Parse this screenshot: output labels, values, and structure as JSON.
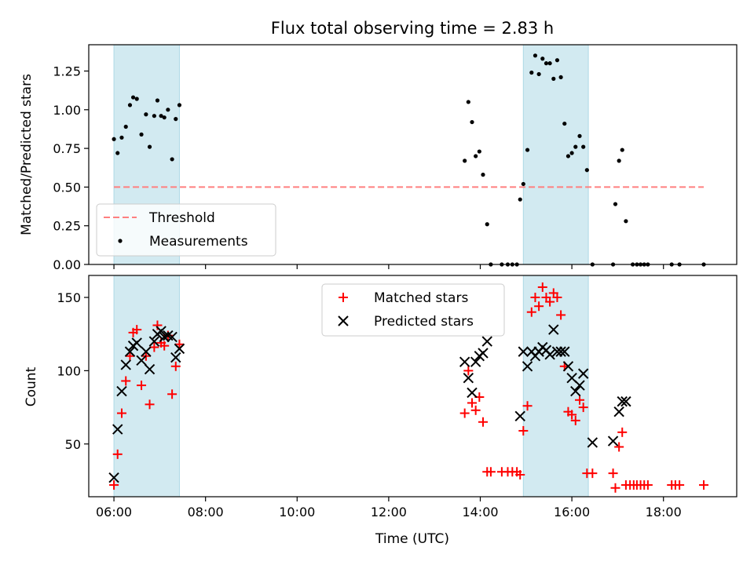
{
  "chart_data": [
    {
      "type": "scatter",
      "title": "Flux total observing time = 2.83 h",
      "xlabel": "",
      "ylabel": "Matched/Predicted stars",
      "xlim": [
        5.45,
        19.6
      ],
      "ylim": [
        0,
        1.42
      ],
      "xticks": [
        6,
        8,
        10,
        12,
        14,
        16,
        18
      ],
      "yticks": [
        0,
        0.25,
        0.5,
        0.75,
        1.0,
        1.25
      ],
      "ytick_labels": [
        "0.00",
        "0.25",
        "0.50",
        "0.75",
        "1.00",
        "1.25"
      ],
      "shaded_spans": [
        [
          6.0,
          7.43
        ],
        [
          14.94,
          16.36
        ]
      ],
      "shade_color": "#add8e6",
      "legend": {
        "placement": "lower-left",
        "threshold_label": "Threshold",
        "measurements_label": "Measurements"
      },
      "threshold": {
        "value": 0.5,
        "x_range": [
          6.0,
          18.88
        ],
        "color": "#ff7f7f"
      },
      "measurements": {
        "color": "#000000",
        "points": [
          [
            6.0,
            0.81
          ],
          [
            6.08,
            0.72
          ],
          [
            6.17,
            0.82
          ],
          [
            6.26,
            0.89
          ],
          [
            6.35,
            1.03
          ],
          [
            6.42,
            1.08
          ],
          [
            6.5,
            1.07
          ],
          [
            6.6,
            0.84
          ],
          [
            6.7,
            0.97
          ],
          [
            6.78,
            0.76
          ],
          [
            6.88,
            0.96
          ],
          [
            6.95,
            1.06
          ],
          [
            7.03,
            0.96
          ],
          [
            7.1,
            0.95
          ],
          [
            7.18,
            1.0
          ],
          [
            7.27,
            0.68
          ],
          [
            7.35,
            0.94
          ],
          [
            7.43,
            1.03
          ],
          [
            13.66,
            0.67
          ],
          [
            13.74,
            1.05
          ],
          [
            13.82,
            0.92
          ],
          [
            13.9,
            0.7
          ],
          [
            13.98,
            0.73
          ],
          [
            14.06,
            0.58
          ],
          [
            14.15,
            0.26
          ],
          [
            14.23,
            0.0
          ],
          [
            14.47,
            0.0
          ],
          [
            14.6,
            0.0
          ],
          [
            14.7,
            0.0
          ],
          [
            14.8,
            0.0
          ],
          [
            14.87,
            0.42
          ],
          [
            14.94,
            0.52
          ],
          [
            15.03,
            0.74
          ],
          [
            15.12,
            1.24
          ],
          [
            15.2,
            1.35
          ],
          [
            15.28,
            1.23
          ],
          [
            15.36,
            1.33
          ],
          [
            15.44,
            1.3
          ],
          [
            15.52,
            1.3
          ],
          [
            15.6,
            1.2
          ],
          [
            15.68,
            1.32
          ],
          [
            15.76,
            1.21
          ],
          [
            15.84,
            0.91
          ],
          [
            15.92,
            0.7
          ],
          [
            16.0,
            0.72
          ],
          [
            16.08,
            0.76
          ],
          [
            16.17,
            0.83
          ],
          [
            16.25,
            0.76
          ],
          [
            16.33,
            0.61
          ],
          [
            16.45,
            0.0
          ],
          [
            16.9,
            0.0
          ],
          [
            16.95,
            0.39
          ],
          [
            17.03,
            0.67
          ],
          [
            17.1,
            0.74
          ],
          [
            17.18,
            0.28
          ],
          [
            17.33,
            0.0
          ],
          [
            17.42,
            0.0
          ],
          [
            17.5,
            0.0
          ],
          [
            17.58,
            0.0
          ],
          [
            17.66,
            0.0
          ],
          [
            18.18,
            0.0
          ],
          [
            18.35,
            0.0
          ],
          [
            18.88,
            0.0
          ]
        ]
      }
    },
    {
      "type": "scatter",
      "title": "",
      "xlabel": "Time (UTC)",
      "ylabel": "Count",
      "xlim": [
        5.45,
        19.6
      ],
      "ylim": [
        14,
        165
      ],
      "xticks": [
        6,
        8,
        10,
        12,
        14,
        16,
        18
      ],
      "xtick_labels": [
        "06:00",
        "08:00",
        "10:00",
        "12:00",
        "14:00",
        "16:00",
        "18:00"
      ],
      "yticks": [
        50,
        100,
        150
      ],
      "ytick_labels": [
        "50",
        "100",
        "150"
      ],
      "shaded_spans": [
        [
          6.0,
          7.43
        ],
        [
          14.94,
          16.36
        ]
      ],
      "shade_color": "#add8e6",
      "legend": {
        "placement": "top-center"
      },
      "series": [
        {
          "name": "Matched stars",
          "marker": "plus",
          "color": "#ff0000",
          "points": [
            [
              6.0,
              22
            ],
            [
              6.08,
              43
            ],
            [
              6.17,
              71
            ],
            [
              6.26,
              93
            ],
            [
              6.35,
              110
            ],
            [
              6.42,
              126
            ],
            [
              6.5,
              128
            ],
            [
              6.6,
              90
            ],
            [
              6.7,
              110
            ],
            [
              6.78,
              77
            ],
            [
              6.88,
              116
            ],
            [
              6.95,
              131
            ],
            [
              7.03,
              119
            ],
            [
              7.1,
              117
            ],
            [
              7.18,
              124
            ],
            [
              7.27,
              84
            ],
            [
              7.35,
              103
            ],
            [
              7.43,
              118
            ],
            [
              13.66,
              71
            ],
            [
              13.74,
              100
            ],
            [
              13.82,
              78
            ],
            [
              13.9,
              73
            ],
            [
              13.98,
              82
            ],
            [
              14.06,
              65
            ],
            [
              14.15,
              31
            ],
            [
              14.23,
              31
            ],
            [
              14.47,
              31
            ],
            [
              14.6,
              31
            ],
            [
              14.7,
              31
            ],
            [
              14.8,
              31
            ],
            [
              14.87,
              29
            ],
            [
              14.94,
              59
            ],
            [
              15.03,
              76
            ],
            [
              15.12,
              140
            ],
            [
              15.2,
              150
            ],
            [
              15.28,
              144
            ],
            [
              15.36,
              157
            ],
            [
              15.44,
              150
            ],
            [
              15.52,
              147
            ],
            [
              15.6,
              153
            ],
            [
              15.68,
              150
            ],
            [
              15.76,
              138
            ],
            [
              15.84,
              103
            ],
            [
              15.92,
              72
            ],
            [
              16.0,
              70
            ],
            [
              16.08,
              66
            ],
            [
              16.17,
              80
            ],
            [
              16.25,
              75
            ],
            [
              16.33,
              30
            ],
            [
              16.45,
              30
            ],
            [
              16.9,
              30
            ],
            [
              16.95,
              20
            ],
            [
              17.03,
              48
            ],
            [
              17.1,
              58
            ],
            [
              17.18,
              22
            ],
            [
              17.27,
              22
            ],
            [
              17.35,
              22
            ],
            [
              17.42,
              22
            ],
            [
              17.5,
              22
            ],
            [
              17.58,
              22
            ],
            [
              17.66,
              22
            ],
            [
              18.18,
              22
            ],
            [
              18.26,
              22
            ],
            [
              18.35,
              22
            ],
            [
              18.88,
              22
            ]
          ]
        },
        {
          "name": "Predicted stars",
          "marker": "x",
          "color": "#000000",
          "points": [
            [
              6.0,
              27
            ],
            [
              6.08,
              60
            ],
            [
              6.17,
              86
            ],
            [
              6.26,
              104
            ],
            [
              6.35,
              113
            ],
            [
              6.42,
              117
            ],
            [
              6.5,
              119
            ],
            [
              6.6,
              107
            ],
            [
              6.7,
              113
            ],
            [
              6.78,
              101
            ],
            [
              6.88,
              120
            ],
            [
              6.95,
              125
            ],
            [
              7.03,
              127
            ],
            [
              7.1,
              123
            ],
            [
              7.18,
              124
            ],
            [
              7.27,
              123
            ],
            [
              7.35,
              109
            ],
            [
              7.43,
              115
            ],
            [
              13.66,
              106
            ],
            [
              13.74,
              95
            ],
            [
              13.82,
              85
            ],
            [
              13.9,
              106
            ],
            [
              13.98,
              110
            ],
            [
              14.06,
              112
            ],
            [
              14.15,
              120
            ],
            [
              14.87,
              69
            ],
            [
              14.94,
              113
            ],
            [
              15.03,
              103
            ],
            [
              15.12,
              113
            ],
            [
              15.2,
              110
            ],
            [
              15.28,
              113
            ],
            [
              15.36,
              116
            ],
            [
              15.44,
              114
            ],
            [
              15.52,
              111
            ],
            [
              15.6,
              128
            ],
            [
              15.68,
              113
            ],
            [
              15.76,
              113
            ],
            [
              15.84,
              113
            ],
            [
              15.92,
              103
            ],
            [
              16.0,
              95
            ],
            [
              16.08,
              86
            ],
            [
              16.17,
              90
            ],
            [
              16.25,
              98
            ],
            [
              16.45,
              51
            ],
            [
              16.9,
              52
            ],
            [
              17.03,
              72
            ],
            [
              17.1,
              79
            ],
            [
              17.18,
              79
            ]
          ]
        }
      ]
    }
  ]
}
